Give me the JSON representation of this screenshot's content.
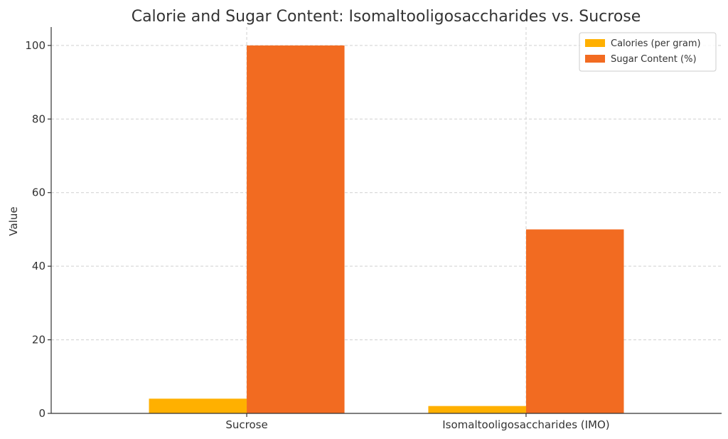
{
  "chart_data": {
    "type": "bar",
    "title": "Calorie and Sugar Content: Isomaltooligosaccharides vs. Sucrose",
    "xlabel": "",
    "ylabel": "Value",
    "categories": [
      "Sucrose",
      "Isomaltooligosaccharides (IMO)"
    ],
    "series": [
      {
        "name": "Calories (per gram)",
        "values": [
          4,
          2
        ],
        "color": "#FFB000"
      },
      {
        "name": "Sugar Content (%)",
        "values": [
          100,
          50
        ],
        "color": "#F26B21"
      }
    ],
    "ylim": [
      0,
      105
    ],
    "yticks": [
      0,
      20,
      40,
      60,
      80,
      100
    ],
    "grid": true,
    "legend_position": "top-right"
  }
}
